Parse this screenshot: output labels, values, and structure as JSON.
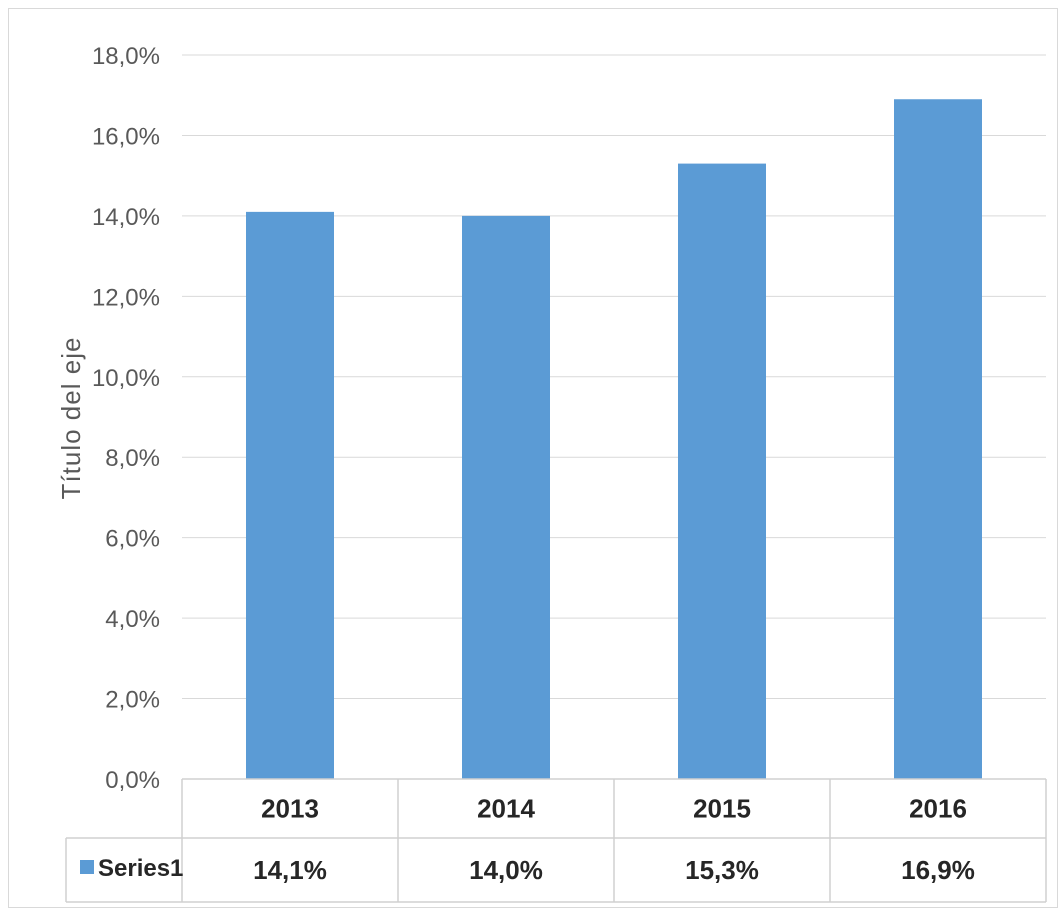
{
  "chart_data": {
    "type": "bar",
    "categories": [
      "2013",
      "2014",
      "2015",
      "2016"
    ],
    "series": [
      {
        "name": "Series1",
        "values": [
          14.1,
          14.0,
          15.3,
          16.9
        ]
      }
    ],
    "value_labels": [
      "14,1%",
      "14,0%",
      "15,3%",
      "16,9%"
    ],
    "ylabel": "Título del eje",
    "ylim": [
      0,
      18
    ],
    "yticks": [
      0,
      2,
      4,
      6,
      8,
      10,
      12,
      14,
      16,
      18
    ],
    "ytick_labels": [
      "0,0%",
      "2,0%",
      "4,0%",
      "6,0%",
      "8,0%",
      "10,0%",
      "12,0%",
      "14,0%",
      "16,0%",
      "18,0%"
    ],
    "grid": true,
    "legend": "data-table",
    "bar_color": "#5B9BD5"
  }
}
